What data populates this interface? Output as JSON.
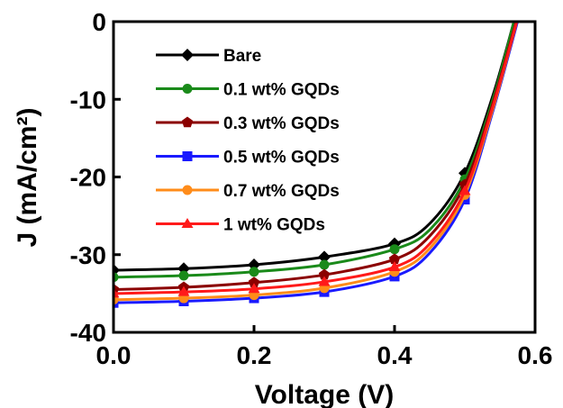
{
  "chart_data": {
    "type": "line",
    "xlabel": "Voltage (V)",
    "ylabel": "J (mA/cm²)",
    "xlim": [
      0.0,
      0.6
    ],
    "ylim": [
      -40,
      0
    ],
    "xticks": [
      "0.0",
      "0.2",
      "0.4",
      "0.6"
    ],
    "yticks": [
      "0",
      "-10",
      "-20",
      "-30",
      "-40"
    ],
    "legend_position": "top-left",
    "grid": false,
    "series": [
      {
        "name": "Bare",
        "color": "#000000",
        "marker": "diamond",
        "points": [
          [
            0.0,
            -32.0
          ],
          [
            0.1,
            -31.8
          ],
          [
            0.2,
            -31.3
          ],
          [
            0.3,
            -30.3
          ],
          [
            0.4,
            -28.6
          ],
          [
            0.45,
            -26.0
          ],
          [
            0.5,
            -19.5
          ],
          [
            0.54,
            -9.5
          ],
          [
            0.57,
            0.0
          ]
        ],
        "markers": [
          [
            0.0,
            -32.0
          ],
          [
            0.1,
            -31.8
          ],
          [
            0.2,
            -31.3
          ],
          [
            0.3,
            -30.3
          ],
          [
            0.4,
            -28.6
          ],
          [
            0.5,
            -19.5
          ]
        ]
      },
      {
        "name": "0.1 wt% GQDs",
        "color": "#1a8a1a",
        "marker": "circle",
        "points": [
          [
            0.0,
            -32.9
          ],
          [
            0.1,
            -32.7
          ],
          [
            0.2,
            -32.2
          ],
          [
            0.3,
            -31.3
          ],
          [
            0.4,
            -29.3
          ],
          [
            0.45,
            -26.8
          ],
          [
            0.5,
            -20.3
          ],
          [
            0.54,
            -10.0
          ],
          [
            0.57,
            0.0
          ]
        ],
        "markers": [
          [
            0.0,
            -32.9
          ],
          [
            0.1,
            -32.7
          ],
          [
            0.2,
            -32.2
          ],
          [
            0.3,
            -31.3
          ],
          [
            0.4,
            -29.3
          ],
          [
            0.5,
            -20.3
          ]
        ]
      },
      {
        "name": "0.3 wt% GQDs",
        "color": "#8b0000",
        "marker": "pentagon",
        "points": [
          [
            0.0,
            -34.5
          ],
          [
            0.1,
            -34.2
          ],
          [
            0.2,
            -33.6
          ],
          [
            0.3,
            -32.6
          ],
          [
            0.4,
            -30.6
          ],
          [
            0.45,
            -27.6
          ],
          [
            0.5,
            -21.0
          ],
          [
            0.54,
            -10.5
          ],
          [
            0.573,
            0.0
          ]
        ],
        "markers": [
          [
            0.0,
            -34.5
          ],
          [
            0.1,
            -34.2
          ],
          [
            0.2,
            -33.6
          ],
          [
            0.3,
            -32.6
          ],
          [
            0.4,
            -30.6
          ],
          [
            0.5,
            -21.0
          ]
        ]
      },
      {
        "name": "0.5 wt% GQDs",
        "color": "#1a1aff",
        "marker": "square",
        "points": [
          [
            0.0,
            -36.2
          ],
          [
            0.1,
            -36.0
          ],
          [
            0.2,
            -35.6
          ],
          [
            0.3,
            -34.8
          ],
          [
            0.4,
            -32.8
          ],
          [
            0.45,
            -29.8
          ],
          [
            0.5,
            -22.9
          ],
          [
            0.54,
            -11.5
          ],
          [
            0.575,
            0.0
          ]
        ],
        "markers": [
          [
            0.0,
            -36.2
          ],
          [
            0.1,
            -36.0
          ],
          [
            0.2,
            -35.6
          ],
          [
            0.3,
            -34.8
          ],
          [
            0.4,
            -32.8
          ],
          [
            0.5,
            -22.9
          ]
        ]
      },
      {
        "name": "0.7 wt% GQDs",
        "color": "#ff8c1a",
        "marker": "circle",
        "points": [
          [
            0.0,
            -35.8
          ],
          [
            0.1,
            -35.6
          ],
          [
            0.2,
            -35.2
          ],
          [
            0.3,
            -34.3
          ],
          [
            0.4,
            -32.2
          ],
          [
            0.45,
            -29.2
          ],
          [
            0.5,
            -22.3
          ],
          [
            0.54,
            -11.2
          ],
          [
            0.574,
            0.0
          ]
        ],
        "markers": [
          [
            0.0,
            -35.8
          ],
          [
            0.1,
            -35.6
          ],
          [
            0.2,
            -35.2
          ],
          [
            0.3,
            -34.3
          ],
          [
            0.4,
            -32.2
          ],
          [
            0.5,
            -22.3
          ]
        ]
      },
      {
        "name": "1 wt% GQDs",
        "color": "#ff1a1a",
        "marker": "triangle",
        "points": [
          [
            0.0,
            -35.0
          ],
          [
            0.1,
            -34.8
          ],
          [
            0.2,
            -34.4
          ],
          [
            0.3,
            -33.5
          ],
          [
            0.4,
            -31.6
          ],
          [
            0.45,
            -28.6
          ],
          [
            0.5,
            -21.8
          ],
          [
            0.54,
            -10.9
          ],
          [
            0.574,
            0.0
          ]
        ],
        "markers": [
          [
            0.0,
            -35.0
          ],
          [
            0.1,
            -34.8
          ],
          [
            0.2,
            -34.4
          ],
          [
            0.3,
            -33.5
          ],
          [
            0.4,
            -31.6
          ],
          [
            0.5,
            -21.8
          ]
        ]
      }
    ]
  }
}
